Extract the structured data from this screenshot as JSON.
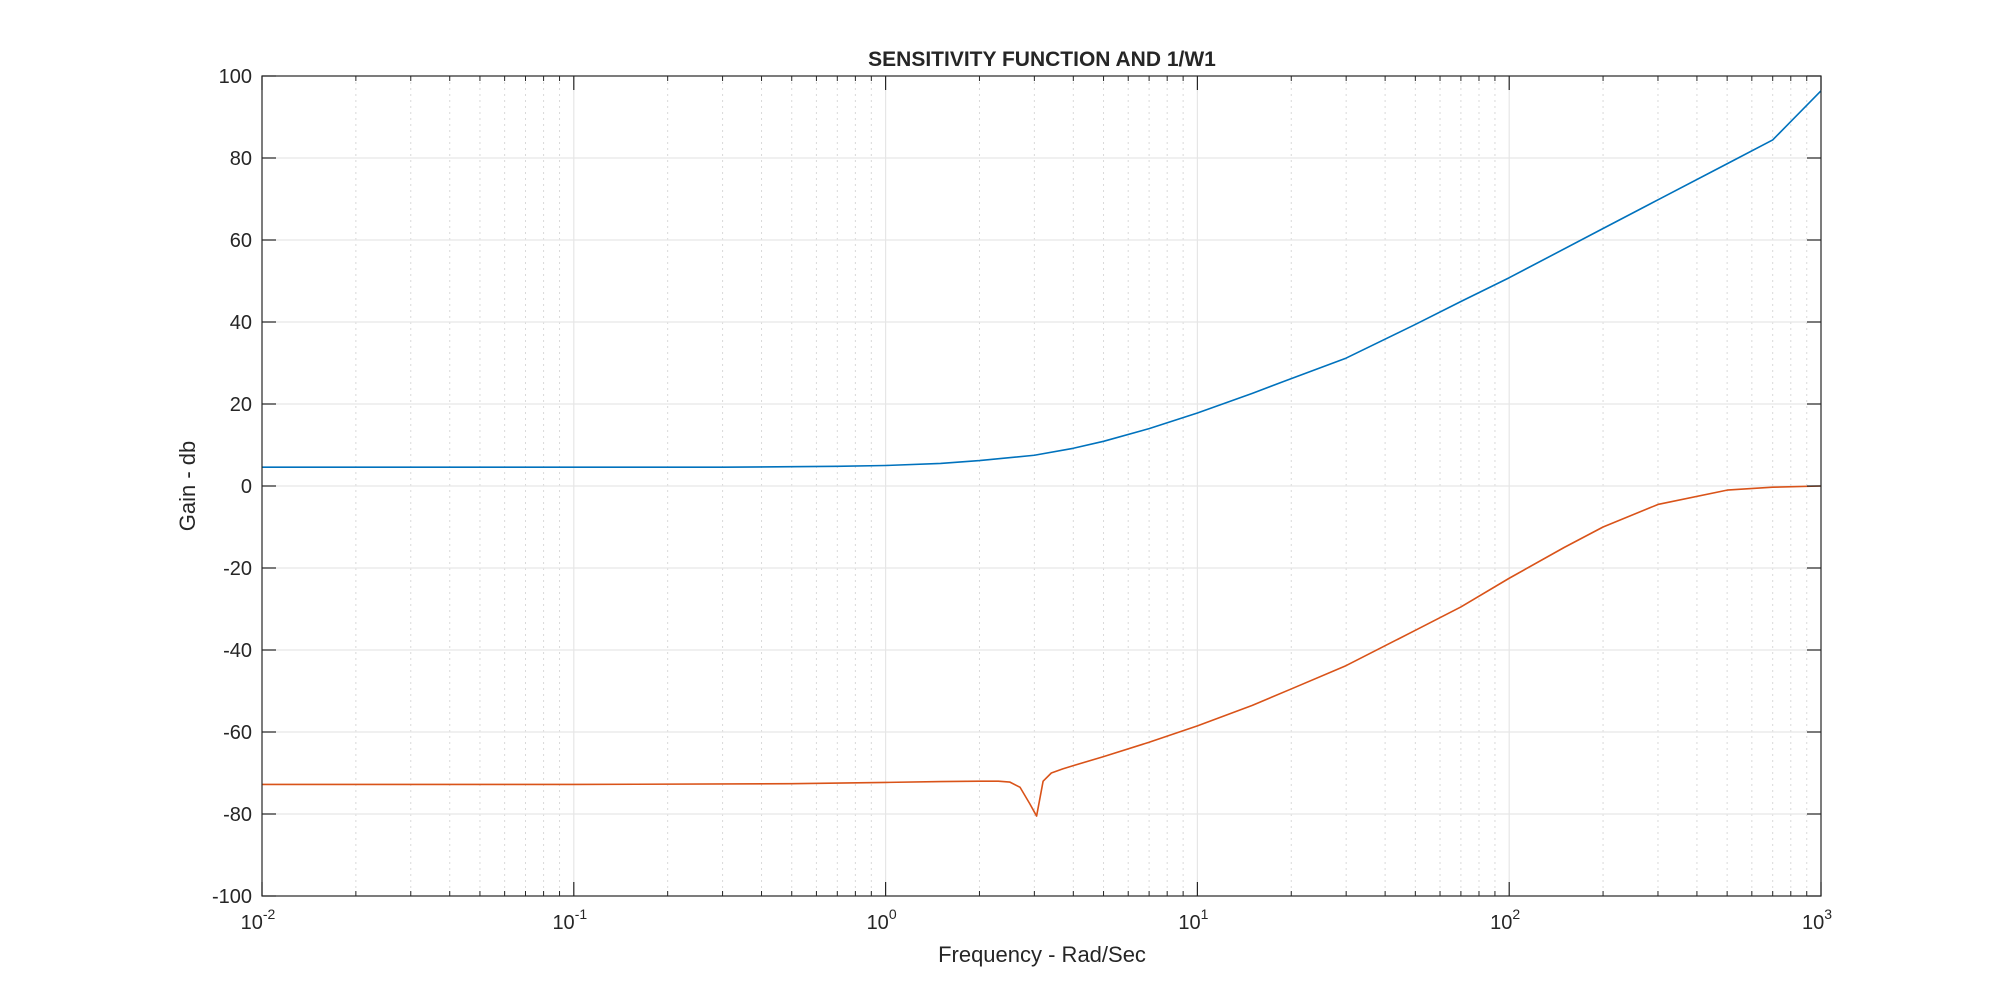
{
  "chart_data": {
    "type": "line",
    "title": "SENSITIVITY FUNCTION AND 1/W1",
    "xlabel": "Frequency - Rad/Sec",
    "ylabel": "Gain - db",
    "x_scale": "log",
    "xlim": [
      0.01,
      1000
    ],
    "ylim": [
      -100,
      100
    ],
    "grid": true,
    "x_tick_labels": [
      {
        "base": "10",
        "exp": "-2"
      },
      {
        "base": "10",
        "exp": "-1"
      },
      {
        "base": "10",
        "exp": "0"
      },
      {
        "base": "10",
        "exp": "1"
      },
      {
        "base": "10",
        "exp": "2"
      },
      {
        "base": "10",
        "exp": "3"
      }
    ],
    "y_tick_labels": [
      "100",
      "80",
      "60",
      "40",
      "20",
      "0",
      "-20",
      "-40",
      "-60",
      "-80",
      "-100"
    ],
    "series": [
      {
        "color": "#0072BD",
        "x": [
          0.01,
          0.03,
          0.1,
          0.3,
          0.5,
          0.7,
          1,
          1.5,
          2,
          3,
          4,
          5,
          7,
          10,
          15,
          20,
          30,
          50,
          70,
          100,
          200,
          300,
          500,
          700,
          1000
        ],
        "y": [
          4.6,
          4.6,
          4.6,
          4.6,
          4.7,
          4.8,
          5.0,
          5.5,
          6.2,
          7.5,
          9.2,
          10.9,
          14.0,
          17.8,
          22.6,
          26.2,
          31.2,
          39.4,
          45.0,
          50.8,
          62.8,
          69.8,
          78.6,
          84.4,
          96.4
        ]
      },
      {
        "color": "#D95319",
        "x": [
          0.01,
          0.1,
          0.5,
          1,
          1.5,
          2,
          2.3,
          2.5,
          2.7,
          2.9,
          3.05,
          3.2,
          3.4,
          3.7,
          4,
          5,
          7,
          10,
          15,
          20,
          30,
          50,
          70,
          100,
          150,
          200,
          300,
          500,
          700,
          1000
        ],
        "y": [
          -72.8,
          -72.8,
          -72.6,
          -72.3,
          -72.1,
          -72.0,
          -72.0,
          -72.2,
          -73.5,
          -77.5,
          -80.5,
          -72.0,
          -70.0,
          -69.0,
          -68.2,
          -66.0,
          -62.5,
          -58.5,
          -53.5,
          -49.5,
          -43.8,
          -35.2,
          -29.5,
          -22.5,
          -15.0,
          -10.0,
          -4.5,
          -1.0,
          -0.3,
          0.0
        ]
      }
    ]
  }
}
